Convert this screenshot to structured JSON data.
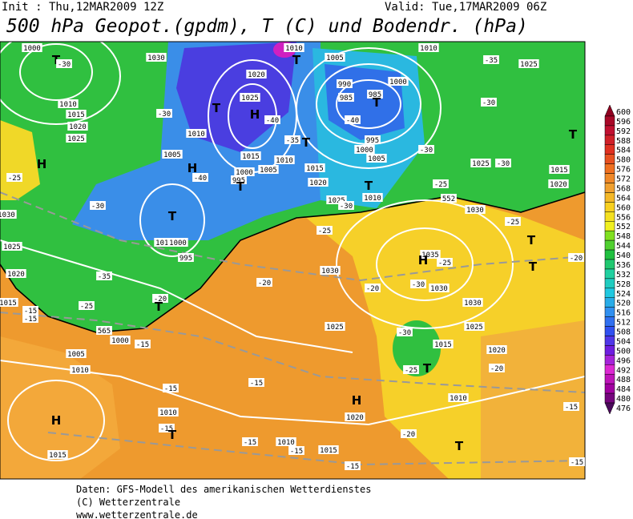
{
  "header": {
    "init": "Init : Thu,12MAR2009 12Z",
    "valid": "Valid: Tue,17MAR2009 06Z",
    "title": "500 hPa Geopot.(gpdm), T (C) und Bodendr. (hPa)"
  },
  "footer": [
    "Daten: GFS-Modell des amerikanischen Wetterdienstes",
    "(C) Wetterzentrale",
    "www.wetterzentrale.de"
  ],
  "colorbar": {
    "ticks": [
      600,
      596,
      592,
      588,
      584,
      580,
      576,
      572,
      568,
      564,
      560,
      556,
      552,
      548,
      544,
      540,
      536,
      532,
      528,
      524,
      520,
      516,
      512,
      508,
      504,
      500,
      496,
      492,
      488,
      484,
      480,
      476
    ]
  },
  "labels": [
    "1000",
    "T",
    "-30",
    "1030",
    "1010",
    "T",
    "1005",
    "1010",
    "-35",
    "1025",
    "1020",
    "990",
    "1000",
    "1025",
    "985",
    "985",
    "T",
    "T",
    "H",
    "-40",
    "-30",
    "1010",
    "1015",
    "1020",
    "1025",
    "-40",
    "-30",
    "T",
    "1010",
    "-35",
    "T",
    "995",
    "1000",
    "-30",
    "1005",
    "1015",
    "1010",
    "1005",
    "H",
    "H",
    "-40",
    "1000",
    "1005",
    "1015",
    "-25",
    "995",
    "T",
    "1020",
    "-25",
    "1025",
    "-30",
    "1015",
    "1020",
    "T",
    "1010",
    "552",
    "-30",
    "1025",
    "-30",
    "T",
    "1030",
    "1030",
    "-25",
    "1010",
    "1000",
    "-25",
    "T",
    "995",
    "1025",
    "1035",
    "H",
    "-25",
    "-20",
    "T",
    "1020",
    "-35",
    "1030",
    "-20",
    "-20",
    "-30",
    "1030",
    "1015",
    "-25",
    "-20",
    "T",
    "-15",
    "-15",
    "1030",
    "1025",
    "-30",
    "1025",
    "565",
    "1000",
    "-15",
    "1015",
    "1020",
    "T",
    "1005",
    "-25",
    "-20",
    "1010",
    "-15",
    "-15",
    "1010",
    "H",
    "H",
    "-15",
    "1010",
    "1020",
    "-15",
    "T",
    "-20",
    "-15",
    "1010",
    "-15",
    "1015",
    "T",
    "1015",
    "-15",
    "-15"
  ]
}
